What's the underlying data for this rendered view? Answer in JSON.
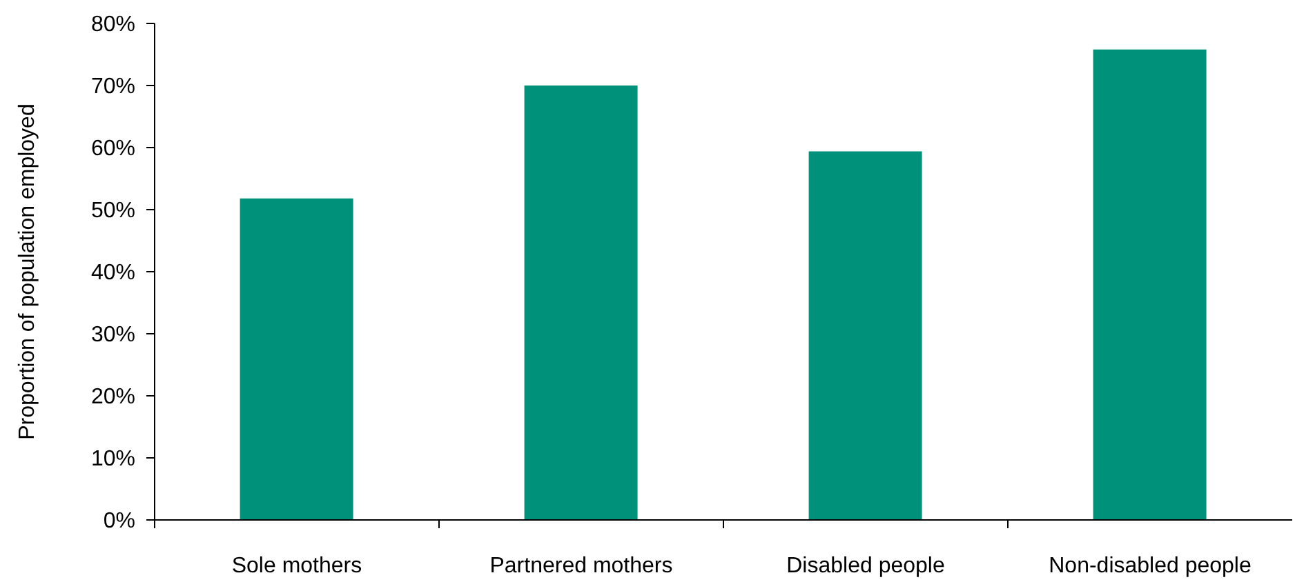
{
  "chart_data": {
    "type": "bar",
    "ylabel": "Proportion of population employed",
    "categories": [
      "Sole mothers",
      "Partnered mothers",
      "Disabled people",
      "Non-disabled people"
    ],
    "values": [
      51.8,
      70.0,
      59.4,
      75.8
    ],
    "color": "#00917a",
    "ylim": [
      0,
      80
    ],
    "yticks": [
      {
        "value": 0,
        "label": "0%"
      },
      {
        "value": 10,
        "label": "10%"
      },
      {
        "value": 20,
        "label": "20%"
      },
      {
        "value": 30,
        "label": "30%"
      },
      {
        "value": 40,
        "label": "40%"
      },
      {
        "value": 50,
        "label": "50%"
      },
      {
        "value": 60,
        "label": "60%"
      },
      {
        "value": 70,
        "label": "70%"
      },
      {
        "value": 80,
        "label": "80%"
      }
    ]
  }
}
